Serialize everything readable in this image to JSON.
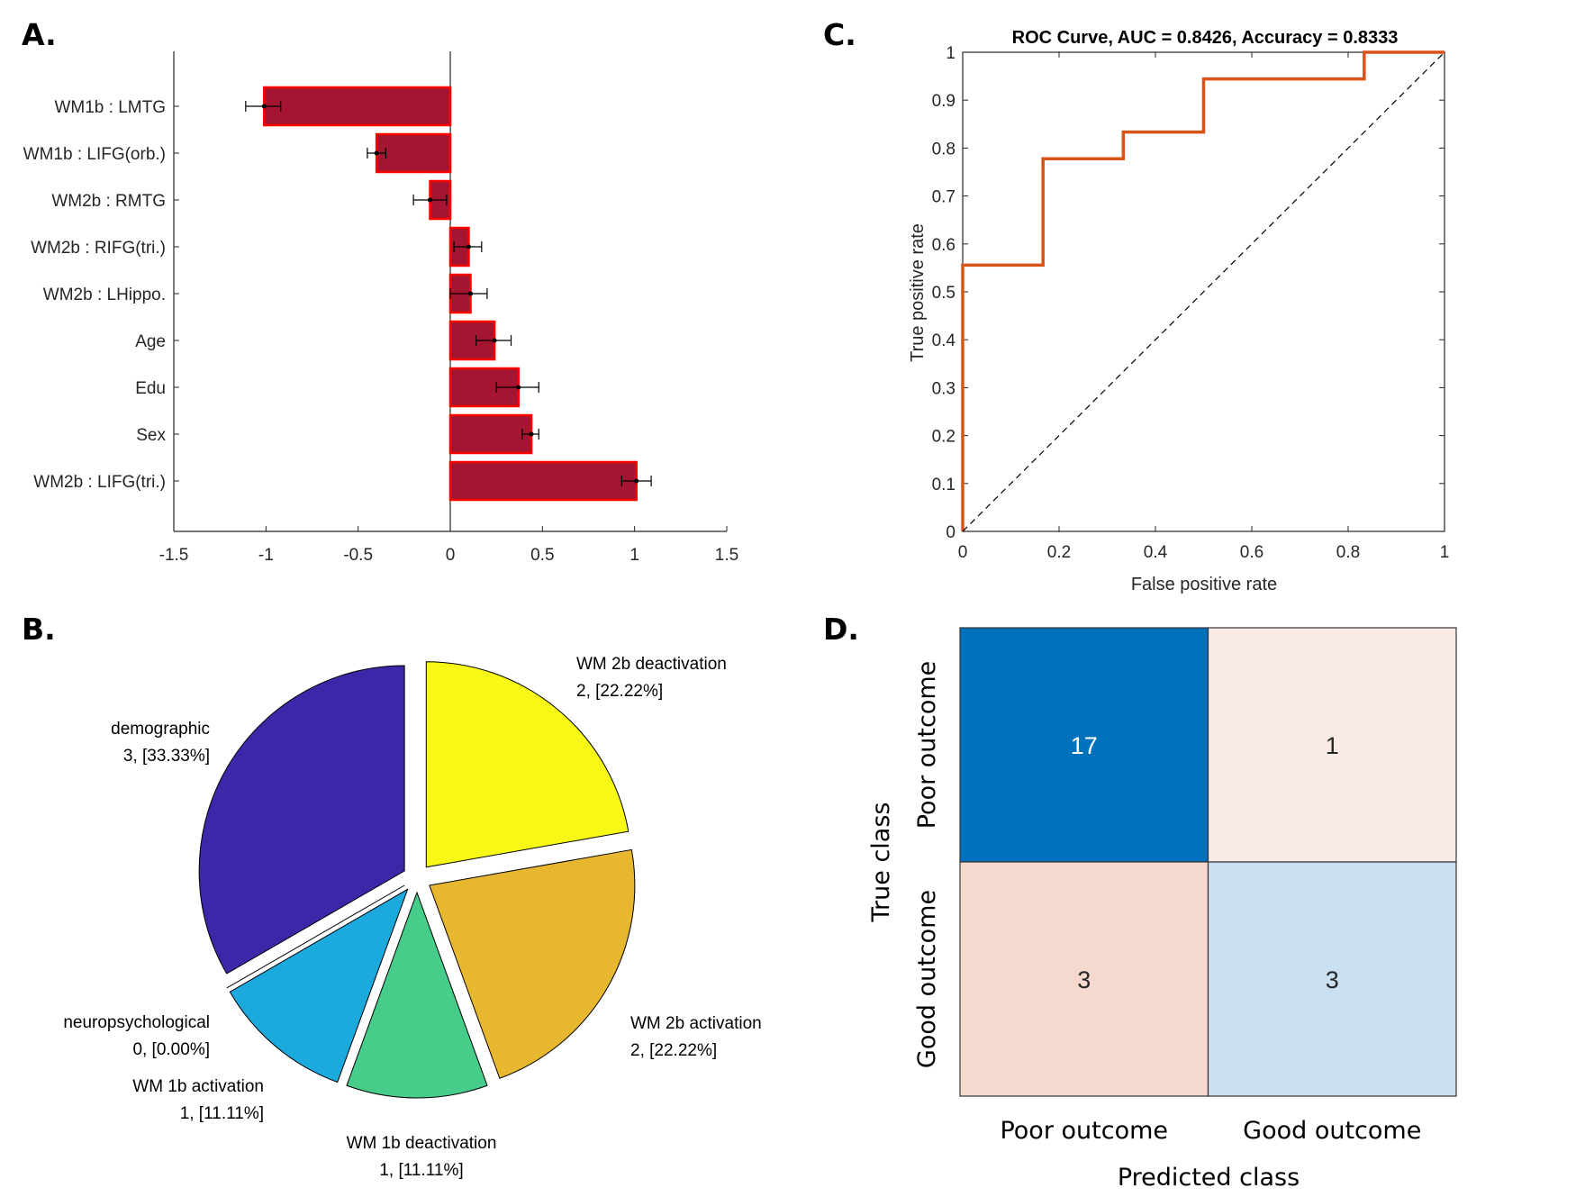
{
  "panels": {
    "A": {
      "letter": "A."
    },
    "B": {
      "letter": "B."
    },
    "C": {
      "letter": "C."
    },
    "D": {
      "letter": "D."
    }
  },
  "chart_data": [
    {
      "id": "A",
      "type": "bar",
      "orientation": "horizontal",
      "title": "",
      "xlabel": "",
      "ylabel": "",
      "xlim": [
        -1.5,
        1.5
      ],
      "xticks": [
        -1.5,
        -1,
        -0.5,
        0,
        0.5,
        1,
        1.5
      ],
      "xtick_labels": [
        "-1.5",
        "-1",
        "-0.5",
        "0",
        "0.5",
        "1",
        "1.5"
      ],
      "categories": [
        "WM1b : LMTG",
        "WM1b : LIFG(orb.)",
        "WM2b : RMTG",
        "WM2b : RIFG(tri.)",
        "WM2b : LHippo.",
        "Age",
        "Edu",
        "Sex",
        "WM2b : LIFG(tri.)"
      ],
      "values": [
        -1.01,
        -0.4,
        -0.11,
        0.1,
        0.11,
        0.24,
        0.37,
        0.44,
        1.01
      ],
      "error_low": [
        -1.11,
        -0.45,
        -0.2,
        0.02,
        0.0,
        0.14,
        0.25,
        0.39,
        0.93
      ],
      "error_high": [
        -0.92,
        -0.35,
        -0.02,
        0.17,
        0.2,
        0.33,
        0.48,
        0.48,
        1.09
      ],
      "colors": {
        "fill": "#A31530",
        "edge": "#FF0000",
        "error": "#000000"
      },
      "grid": false
    },
    {
      "id": "B",
      "type": "pie",
      "title": "",
      "slices": [
        {
          "name": "WM 2b deactivation",
          "count": 2,
          "label": "2, [22.22%]",
          "color": "#F8F816"
        },
        {
          "name": "WM 2b activation",
          "count": 2,
          "label": "2, [22.22%]",
          "color": "#E8B730"
        },
        {
          "name": "WM 1b deactivation",
          "count": 1,
          "label": "1, [11.11%]",
          "color": "#48CC8A"
        },
        {
          "name": "WM 1b activation",
          "count": 1,
          "label": "1, [11.11%]",
          "color": "#1CAADE"
        },
        {
          "name": "neuropsychological",
          "count": 0,
          "label": "0, [0.00%]",
          "color": "#2E8FD6"
        },
        {
          "name": "demographic",
          "count": 3,
          "label": "3, [33.33%]",
          "color": "#3D26A8"
        }
      ]
    },
    {
      "id": "C",
      "type": "line",
      "title": "ROC Curve, AUC = 0.8426, Accuracy = 0.8333",
      "xlabel": "False positive rate",
      "ylabel": "True positive rate",
      "xlim": [
        0,
        1
      ],
      "ylim": [
        0,
        1
      ],
      "xticks": [
        0,
        0.2,
        0.4,
        0.6,
        0.8,
        1
      ],
      "xtick_labels": [
        "0",
        "0.2",
        "0.4",
        "0.6",
        "0.8",
        "1"
      ],
      "yticks": [
        0,
        0.1,
        0.2,
        0.3,
        0.4,
        0.5,
        0.6,
        0.7,
        0.8,
        0.9,
        1
      ],
      "ytick_labels": [
        "0",
        "0.1",
        "0.2",
        "0.3",
        "0.4",
        "0.5",
        "0.6",
        "0.7",
        "0.8",
        "0.9",
        "1"
      ],
      "series": [
        {
          "name": "ROC",
          "color": "#D95319",
          "style": "solid",
          "x": [
            0,
            0,
            0.1667,
            0.1667,
            0.3333,
            0.3333,
            0.5,
            0.5,
            0.8333,
            0.8333,
            1
          ],
          "y": [
            0,
            0.5556,
            0.5556,
            0.7778,
            0.7778,
            0.8333,
            0.8333,
            0.9444,
            0.9444,
            1,
            1
          ]
        },
        {
          "name": "chance",
          "color": "#000000",
          "style": "dashed",
          "x": [
            0,
            1
          ],
          "y": [
            0,
            1
          ]
        }
      ],
      "grid": false
    },
    {
      "id": "D",
      "type": "heatmap",
      "title": "",
      "xlabel": "Predicted class",
      "ylabel": "True class",
      "row_labels": [
        "Poor outcome",
        "Good outcome"
      ],
      "col_labels": [
        "Poor outcome",
        "Good outcome"
      ],
      "values": [
        [
          17,
          1
        ],
        [
          3,
          3
        ]
      ],
      "cell_colors": [
        [
          "#0072BD",
          "#FBEBE6"
        ],
        [
          "#F6D9CE",
          "#C9DFF2"
        ]
      ],
      "text_colors": [
        [
          "#FFFFFF",
          "#262626"
        ],
        [
          "#262626",
          "#262626"
        ]
      ]
    }
  ]
}
